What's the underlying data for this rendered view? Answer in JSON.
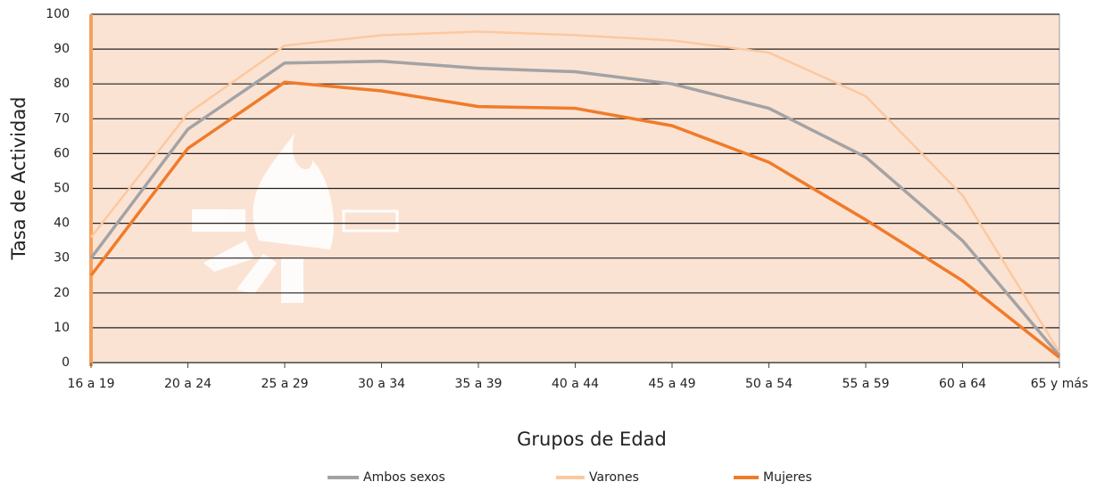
{
  "chart_data": {
    "type": "line",
    "x_label": "Grupos de Edad",
    "y_label": "Tasa de Actividad",
    "categories": [
      "16 a 19",
      "20 a 24",
      "25 a 29",
      "30 a 34",
      "35 a 39",
      "40 a 44",
      "45 a 49",
      "50 a 54",
      "55 a 59",
      "60 a 64",
      "65 y más"
    ],
    "series": [
      {
        "name": "Ambos sexos",
        "color": "#a3a3a5",
        "values": [
          30,
          67,
          86,
          86.5,
          84.5,
          83.5,
          80,
          73,
          59,
          35,
          2
        ]
      },
      {
        "name": "Varones",
        "color": "#fbc8a0",
        "values": [
          36,
          71.5,
          91,
          94,
          95,
          94,
          92.5,
          89,
          76.5,
          48,
          3
        ]
      },
      {
        "name": "Mujeres",
        "color": "#f07b2a",
        "values": [
          25,
          61.5,
          80.5,
          78,
          73.5,
          73,
          68,
          57.5,
          41,
          23.5,
          1.5
        ]
      }
    ],
    "ylim": [
      0,
      100
    ],
    "yticks": [
      0,
      10,
      20,
      30,
      40,
      50,
      60,
      70,
      80,
      90,
      100
    ],
    "grid": true
  }
}
